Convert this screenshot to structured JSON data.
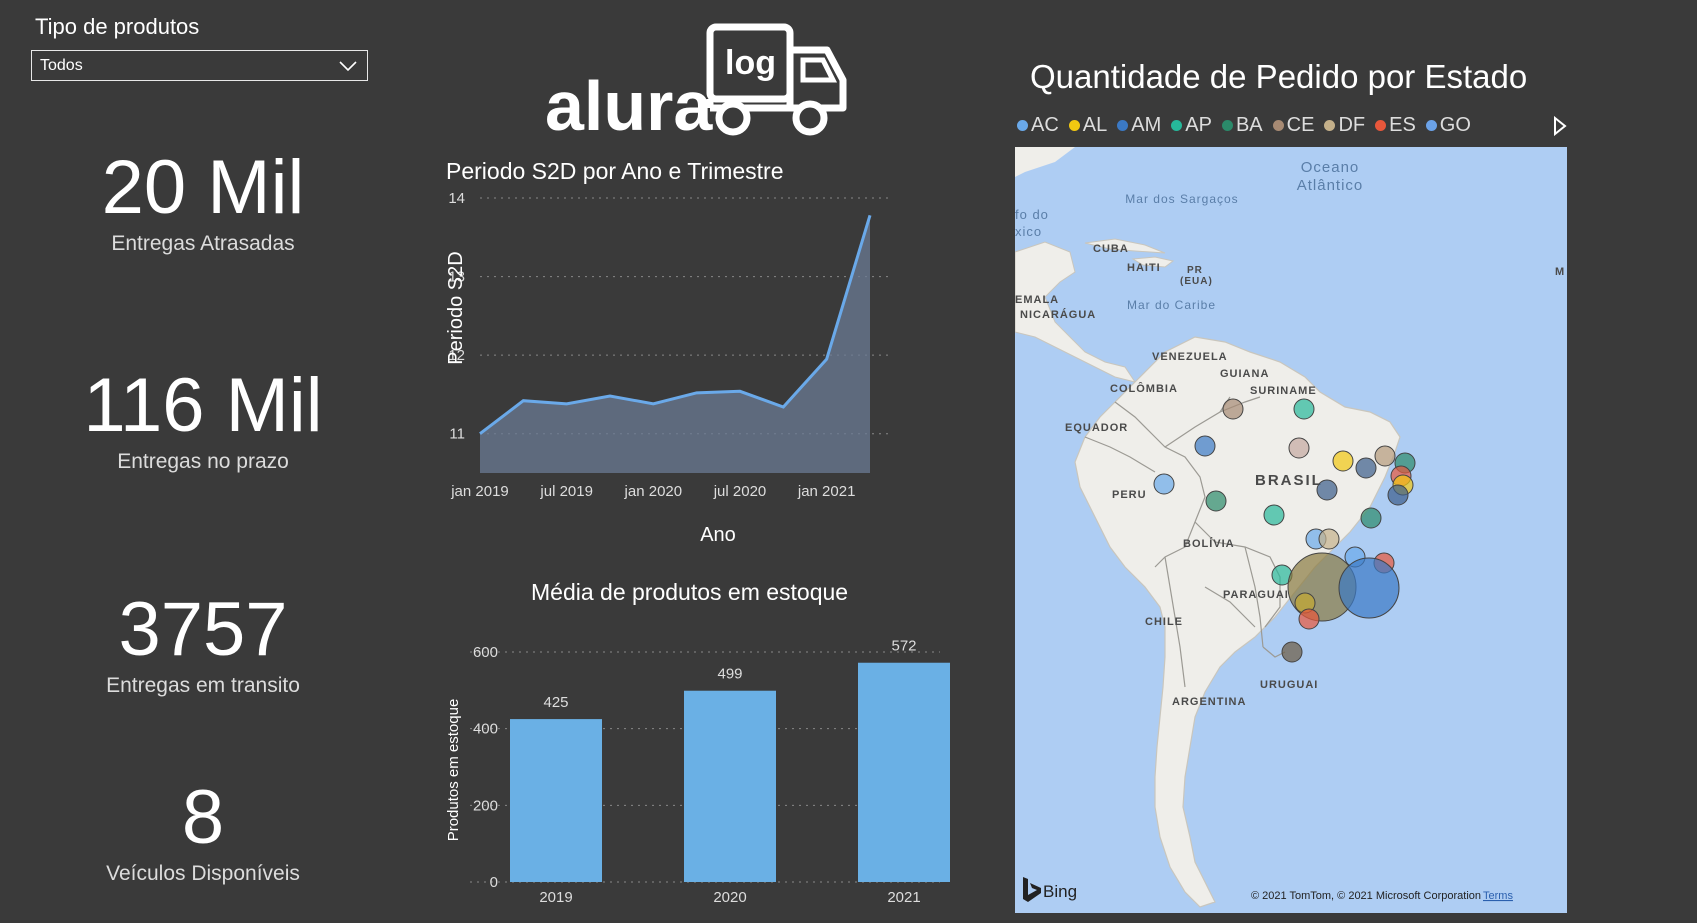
{
  "filter": {
    "title": "Tipo de produtos",
    "selected": "Todos"
  },
  "kpis": [
    {
      "value": "20 Mil",
      "label": "Entregas Atrasadas"
    },
    {
      "value": "116 Mil",
      "label": "Entregas no prazo"
    },
    {
      "value": "3757",
      "label": "Entregas em transito"
    },
    {
      "value": "8",
      "label": "Veículos Disponíveis"
    }
  ],
  "logo": {
    "brand": "alura",
    "badge": "log"
  },
  "line_chart": {
    "title": "Periodo S2D por Ano e Trimestre",
    "xlabel": "Ano",
    "ylabel": "Periodo S2D",
    "yticks": [
      "11",
      "12",
      "13",
      "14"
    ],
    "xticks": [
      "jan 2019",
      "jul 2019",
      "jan 2020",
      "jul 2020",
      "jan 2021"
    ]
  },
  "bar_chart": {
    "title": "Média de produtos em estoque",
    "ylabel": "Produtos em estoque",
    "yticks": [
      "0",
      "200",
      "400",
      "600"
    ],
    "categories": [
      "2019",
      "2020",
      "2021"
    ],
    "labels": [
      "425",
      "499",
      "572"
    ]
  },
  "map": {
    "title": "Quantidade de Pedido por Estado",
    "legend": [
      {
        "name": "AC",
        "color": "#6aa9e9"
      },
      {
        "name": "AL",
        "color": "#f2c811"
      },
      {
        "name": "AM",
        "color": "#3b79c4"
      },
      {
        "name": "AP",
        "color": "#26b89a"
      },
      {
        "name": "BA",
        "color": "#2b8a6a"
      },
      {
        "name": "CE",
        "color": "#a78a73"
      },
      {
        "name": "DF",
        "color": "#c4b08a"
      },
      {
        "name": "ES",
        "color": "#e8573b"
      },
      {
        "name": "GO",
        "color": "#6ba2e8"
      }
    ],
    "labels": {
      "ocean": "Oceano",
      "ocean2": "Atlântico",
      "sargassos": "Mar dos Sargaços",
      "mexico1": "fo do",
      "mexico2": "xico",
      "cuba": "CUBA",
      "haiti": "HAITI",
      "pr1": "PR",
      "pr2": "(EUA)",
      "guatemala": "EMALA",
      "nicaragua": "NICARÁGUA",
      "caribe": "Mar do Caribe",
      "venezuela": "VENEZUELA",
      "guiana": "GUIANA",
      "colombia": "COLÔMBIA",
      "suriname": "SURINAME",
      "equador": "EQUADOR",
      "brasil": "BRASIL",
      "peru": "PERU",
      "bolivia": "BOLÍVIA",
      "paraguai": "PARAGUAI",
      "chile": "CHILE",
      "uruguai": "URUGUAI",
      "argentina": "ARGENTINA",
      "m_edge": "M"
    },
    "bing": "Bing",
    "copyright": "© 2021 TomTom, © 2021 Microsoft Corporation",
    "terms": "Terms"
  },
  "chart_data": [
    {
      "type": "area",
      "title": "Periodo S2D por Ano e Trimestre",
      "xlabel": "Ano",
      "ylabel": "Periodo S2D",
      "x": [
        "2019-01",
        "2019-04",
        "2019-07",
        "2019-10",
        "2020-01",
        "2020-04",
        "2020-07",
        "2020-10",
        "2021-01",
        "2021-04"
      ],
      "values": [
        11.0,
        11.42,
        11.38,
        11.48,
        11.38,
        11.52,
        11.54,
        11.34,
        11.95,
        13.78
      ],
      "ylim": [
        10.5,
        14
      ],
      "grid": true,
      "color": "#6aa9e9"
    },
    {
      "type": "bar",
      "title": "Média de produtos em estoque",
      "xlabel": "",
      "ylabel": "Produtos em estoque",
      "categories": [
        "2019",
        "2020",
        "2021"
      ],
      "values": [
        425,
        499,
        572
      ],
      "ylim": [
        0,
        600
      ],
      "grid": true,
      "color": "#6ab0e5"
    }
  ]
}
